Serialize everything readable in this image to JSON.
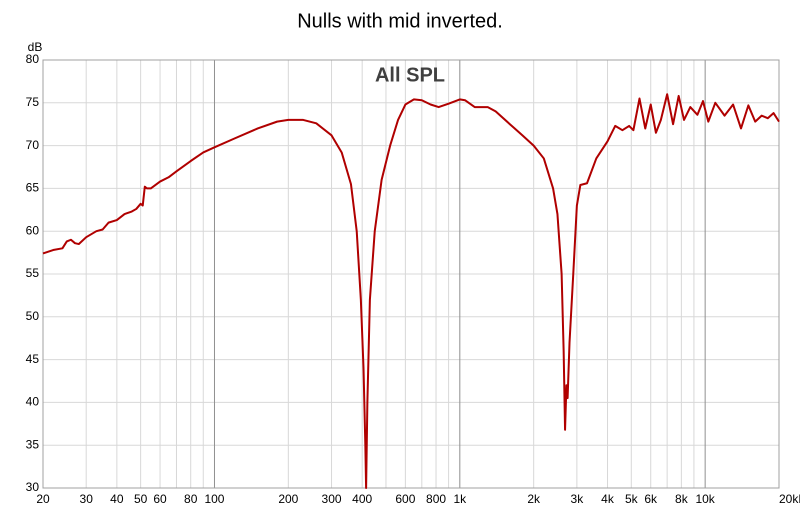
{
  "chart_data": {
    "type": "line",
    "title": "Nulls with mid inverted.",
    "annotation": "All SPL",
    "y_label": "dB",
    "xscale": "log",
    "grid": true,
    "xlim": [
      20,
      20000
    ],
    "ylim": [
      30,
      80
    ],
    "xticks": [
      20,
      30,
      40,
      50,
      60,
      80,
      100,
      200,
      300,
      400,
      600,
      800,
      {
        "value": 1000,
        "label": "1k"
      },
      {
        "value": 2000,
        "label": "2k"
      },
      {
        "value": 3000,
        "label": "3k"
      },
      {
        "value": 4000,
        "label": "4k"
      },
      {
        "value": 5000,
        "label": "5k"
      },
      {
        "value": 6000,
        "label": "6k"
      },
      {
        "value": 8000,
        "label": "8k"
      },
      {
        "value": 10000,
        "label": "10k"
      },
      {
        "value": 20000,
        "label": "20kHz"
      }
    ],
    "xminor": [
      70,
      90,
      500,
      700,
      900,
      7000,
      9000
    ],
    "yticks": [
      30,
      35,
      40,
      45,
      50,
      55,
      60,
      65,
      70,
      75,
      80
    ],
    "x": [
      20,
      22,
      24,
      25,
      26,
      27,
      28,
      30,
      33,
      35,
      37,
      40,
      43,
      46,
      48,
      50,
      51,
      52,
      53,
      55,
      60,
      65,
      70,
      80,
      90,
      100,
      120,
      150,
      180,
      200,
      230,
      260,
      300,
      330,
      360,
      380,
      395,
      405,
      412,
      415,
      420,
      430,
      450,
      480,
      520,
      560,
      600,
      650,
      700,
      760,
      820,
      900,
      1000,
      1050,
      1150,
      1300,
      1400,
      1600,
      1800,
      2000,
      2200,
      2400,
      2500,
      2600,
      2650,
      2685,
      2720,
      2750,
      2800,
      2900,
      3000,
      3100,
      3300,
      3600,
      4000,
      4300,
      4600,
      4900,
      5100,
      5400,
      5700,
      6000,
      6300,
      6600,
      7000,
      7400,
      7800,
      8200,
      8700,
      9300,
      9800,
      10300,
      11000,
      12000,
      13000,
      14000,
      15000,
      16000,
      17000,
      18000,
      19000,
      20000
    ],
    "series": [
      {
        "color": "#b00000",
        "values": [
          57.4,
          57.8,
          58.0,
          58.8,
          59.0,
          58.6,
          58.5,
          59.3,
          60.0,
          60.2,
          61.0,
          61.3,
          62.0,
          62.3,
          62.6,
          63.2,
          63.0,
          65.2,
          65.0,
          65.0,
          65.8,
          66.3,
          67.0,
          68.2,
          69.2,
          69.8,
          70.8,
          72.0,
          72.8,
          73.0,
          73.0,
          72.6,
          71.2,
          69.2,
          65.5,
          60.0,
          52.0,
          44.0,
          35.0,
          30.0,
          40.0,
          52.0,
          60.0,
          66.0,
          70.0,
          73.0,
          74.8,
          75.4,
          75.3,
          74.8,
          74.5,
          74.9,
          75.4,
          75.3,
          74.5,
          74.5,
          74.0,
          72.5,
          71.2,
          70.0,
          68.5,
          65.0,
          62.0,
          55.0,
          46.0,
          36.8,
          42.0,
          40.5,
          47.0,
          55.0,
          63.0,
          65.4,
          65.6,
          68.5,
          70.5,
          72.3,
          71.8,
          72.3,
          71.8,
          75.5,
          72.0,
          74.8,
          71.5,
          73.0,
          76.0,
          72.5,
          75.8,
          73.0,
          74.5,
          73.6,
          75.2,
          72.8,
          75.0,
          73.5,
          74.8,
          72.0,
          74.7,
          72.8,
          73.5,
          73.2,
          73.8,
          72.8
        ]
      }
    ]
  }
}
